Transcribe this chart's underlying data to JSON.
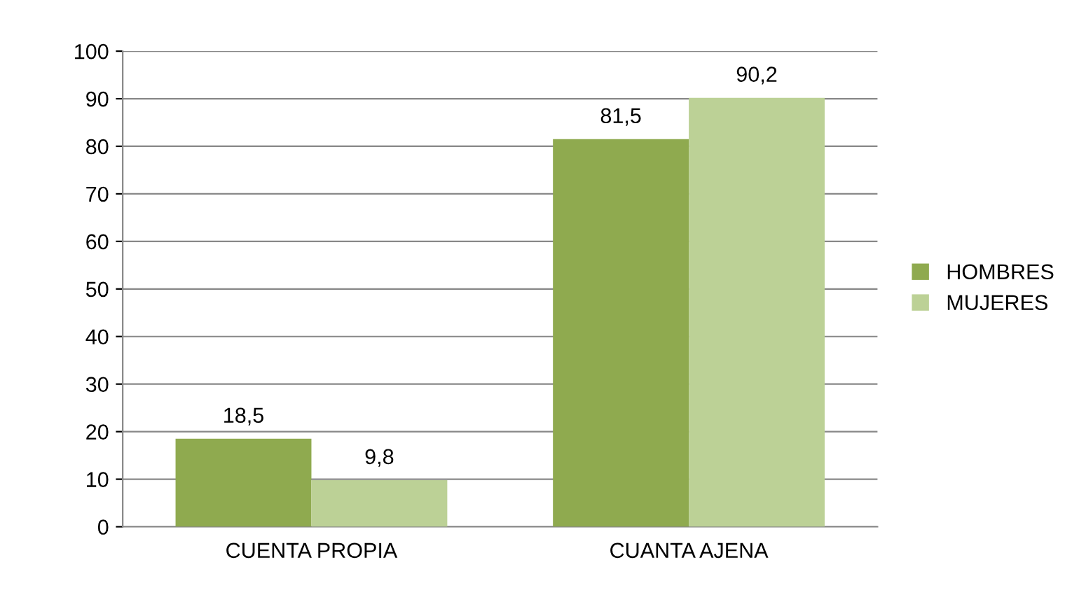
{
  "chart_data": {
    "type": "bar",
    "categories": [
      "CUENTA PROPIA",
      "CUANTA AJENA"
    ],
    "series": [
      {
        "name": "HOMBRES",
        "color": "#8faa4f",
        "values": [
          18.5,
          81.5
        ],
        "value_labels": [
          "18,5",
          "81,5"
        ]
      },
      {
        "name": "MUJERES",
        "color": "#bcd196",
        "values": [
          9.8,
          90.2
        ],
        "value_labels": [
          "9,8",
          "90,2"
        ]
      }
    ],
    "ylim": [
      0,
      100
    ],
    "yticks": [
      0,
      10,
      20,
      30,
      40,
      50,
      60,
      70,
      80,
      90,
      100
    ],
    "grid": "y",
    "legend": "right"
  }
}
